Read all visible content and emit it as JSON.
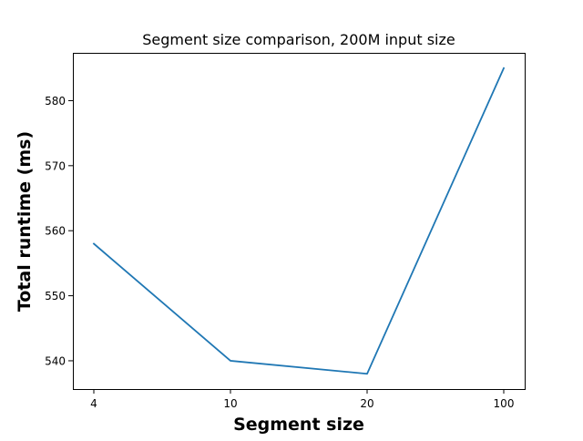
{
  "chart_data": {
    "type": "line",
    "title": "Segment size comparison, 200M input size",
    "xlabel": "Segment size",
    "ylabel": "Total runtime (ms)",
    "categories": [
      "4",
      "10",
      "20",
      "100"
    ],
    "series": [
      {
        "values": [
          558,
          540,
          538,
          585
        ],
        "color": "#1f77b4"
      }
    ],
    "ylim": [
      535.65,
      587.35
    ],
    "yticks": [
      540,
      550,
      560,
      570,
      580
    ],
    "grid": false
  }
}
